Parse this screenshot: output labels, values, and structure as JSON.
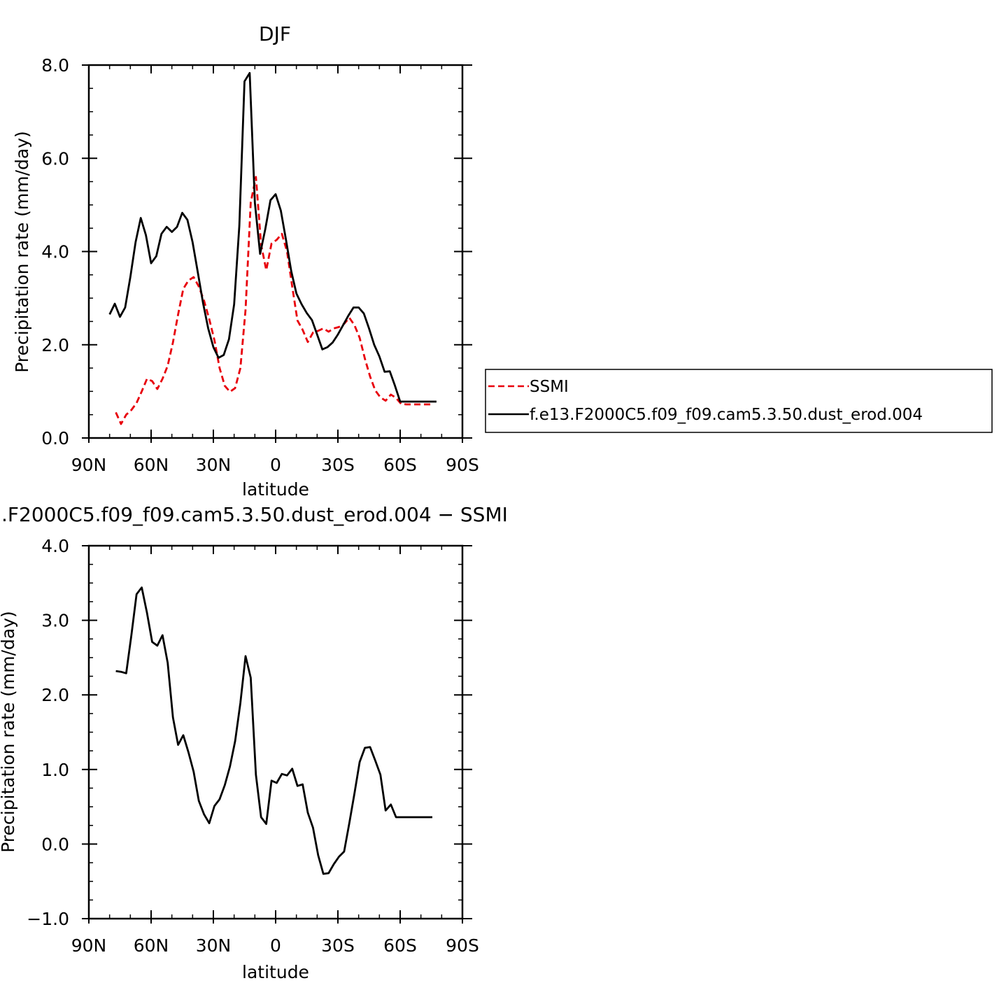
{
  "chart_data": [
    {
      "type": "line",
      "title": "DJF",
      "xlabel": "latitude",
      "ylabel": "Precipitation rate (mm/day)",
      "xlim": [
        -90,
        90
      ],
      "ylim": [
        0,
        8
      ],
      "x_ticks": [
        -90,
        -60,
        -30,
        0,
        30,
        60,
        90
      ],
      "x_tick_labels": [
        "90N",
        "60N",
        "30N",
        "0",
        "30S",
        "60S",
        "90S"
      ],
      "y_ticks": [
        0,
        2,
        4,
        6,
        8
      ],
      "y_tick_labels": [
        "0.0",
        "2.0",
        "4.0",
        "6.0",
        "8.0"
      ],
      "legend_position": "right",
      "series": [
        {
          "name": "SSMI",
          "color": "#e8000b",
          "dash": "dashed",
          "x": [
            -77,
            -74.5,
            -72,
            -69.5,
            -67,
            -64.5,
            -62,
            -59.5,
            -57,
            -54.5,
            -52,
            -49.5,
            -47,
            -44.5,
            -42,
            -39.5,
            -37,
            -34.5,
            -32,
            -29.5,
            -27,
            -24.5,
            -22,
            -19.5,
            -17,
            -14.5,
            -12,
            -9.5,
            -7,
            -4.5,
            -2,
            0.5,
            3,
            5.5,
            8,
            10.5,
            13,
            15.5,
            18,
            20.5,
            23,
            25.5,
            28,
            30.5,
            33,
            35.5,
            38,
            40.5,
            43,
            45.5,
            48,
            50.5,
            53,
            55.5,
            58,
            60.5,
            63,
            65.5,
            68,
            70.5,
            73,
            75.5
          ],
          "y": [
            0.55,
            0.3,
            0.5,
            0.6,
            0.75,
            1.0,
            1.27,
            1.22,
            1.05,
            1.27,
            1.55,
            2.05,
            2.65,
            3.2,
            3.38,
            3.45,
            3.25,
            2.95,
            2.55,
            2.1,
            1.5,
            1.12,
            0.99,
            1.07,
            1.5,
            2.75,
            5.05,
            5.6,
            4.15,
            3.6,
            4.17,
            4.25,
            4.38,
            4.0,
            3.25,
            2.52,
            2.32,
            2.06,
            2.26,
            2.3,
            2.35,
            2.28,
            2.35,
            2.38,
            2.45,
            2.58,
            2.42,
            2.15,
            1.7,
            1.32,
            1.02,
            0.87,
            0.8,
            0.93,
            0.86,
            0.73,
            0.72,
            0.72,
            0.72,
            0.72,
            0.72,
            0.72
          ]
        },
        {
          "name": "f.e13.F2000C5.f09_f09.cam5.3.50.dust_erod.004",
          "color": "#000000",
          "dash": "solid",
          "x": [
            -80,
            -77.5,
            -75,
            -72.5,
            -70,
            -67.5,
            -65,
            -62.5,
            -60,
            -57.5,
            -55,
            -52.5,
            -50,
            -47.5,
            -45,
            -42.5,
            -40,
            -37.5,
            -35,
            -32.5,
            -30,
            -27.5,
            -25,
            -22.5,
            -20,
            -17.5,
            -15,
            -12.5,
            -10,
            -7.5,
            -5,
            -2.5,
            0,
            2.5,
            5,
            7.5,
            10,
            12.5,
            15,
            17.5,
            20,
            22.5,
            25,
            27.5,
            30,
            32.5,
            35,
            37.5,
            40,
            42.5,
            45,
            47.5,
            50,
            52.5,
            55,
            57.5,
            60,
            62.5,
            65,
            67.5,
            70,
            72.5,
            75,
            77.5
          ],
          "y": [
            2.65,
            2.88,
            2.6,
            2.8,
            3.45,
            4.2,
            4.72,
            4.35,
            3.75,
            3.9,
            4.38,
            4.53,
            4.42,
            4.53,
            4.83,
            4.68,
            4.2,
            3.55,
            2.9,
            2.35,
            1.95,
            1.72,
            1.78,
            2.12,
            2.87,
            4.55,
            7.65,
            7.83,
            5.05,
            3.95,
            4.48,
            5.1,
            5.23,
            4.88,
            4.25,
            3.58,
            3.1,
            2.87,
            2.68,
            2.53,
            2.22,
            1.9,
            1.95,
            2.05,
            2.22,
            2.42,
            2.62,
            2.8,
            2.8,
            2.67,
            2.35,
            2.0,
            1.75,
            1.42,
            1.43,
            1.12,
            0.78,
            0.78,
            0.78,
            0.78,
            0.78,
            0.78,
            0.78,
            0.78
          ]
        }
      ]
    },
    {
      "type": "line",
      "title": ".F2000C5.f09_f09.cam5.3.50.dust_erod.004 − SSMI",
      "xlabel": "latitude",
      "ylabel": "Precipitation rate (mm/day)",
      "xlim": [
        -90,
        90
      ],
      "ylim": [
        -1,
        4
      ],
      "x_ticks": [
        -90,
        -60,
        -30,
        0,
        30,
        60,
        90
      ],
      "x_tick_labels": [
        "90N",
        "60N",
        "30N",
        "0",
        "30S",
        "60S",
        "90S"
      ],
      "y_ticks": [
        -1,
        0,
        1,
        2,
        3,
        4
      ],
      "y_tick_labels": [
        "−1.0",
        "0.0",
        "1.0",
        "2.0",
        "3.0",
        "4.0"
      ],
      "series": [
        {
          "color": "#000000",
          "dash": "solid",
          "x": [
            -77,
            -74.5,
            -72,
            -69.5,
            -67,
            -64.5,
            -62,
            -59.5,
            -57,
            -54.5,
            -52,
            -49.5,
            -47,
            -44.5,
            -42,
            -39.5,
            -37,
            -34.5,
            -32,
            -29.5,
            -27,
            -24.5,
            -22,
            -19.5,
            -17,
            -14.5,
            -12,
            -9.5,
            -7,
            -4.5,
            -2,
            0.5,
            3,
            5.5,
            8,
            10.5,
            13,
            15.5,
            18,
            20.5,
            23,
            25.5,
            28,
            30.5,
            33,
            35.5,
            38,
            40.5,
            43,
            45.5,
            48,
            50.5,
            53,
            55.5,
            58,
            60.5,
            63,
            65.5,
            68,
            70.5,
            73,
            75.5
          ],
          "y": [
            2.32,
            2.31,
            2.29,
            2.8,
            3.35,
            3.44,
            3.1,
            2.71,
            2.66,
            2.8,
            2.43,
            1.7,
            1.33,
            1.46,
            1.23,
            0.97,
            0.58,
            0.4,
            0.28,
            0.51,
            0.6,
            0.79,
            1.04,
            1.38,
            1.89,
            2.52,
            2.23,
            0.93,
            0.36,
            0.27,
            0.85,
            0.82,
            0.94,
            0.92,
            1.01,
            0.78,
            0.8,
            0.42,
            0.22,
            -0.15,
            -0.4,
            -0.39,
            -0.27,
            -0.17,
            -0.1,
            0.28,
            0.68,
            1.1,
            1.29,
            1.3,
            1.12,
            0.93,
            0.45,
            0.53,
            0.36,
            0.36,
            0.36,
            0.36,
            0.36,
            0.36,
            0.36,
            0.36
          ]
        }
      ]
    }
  ]
}
